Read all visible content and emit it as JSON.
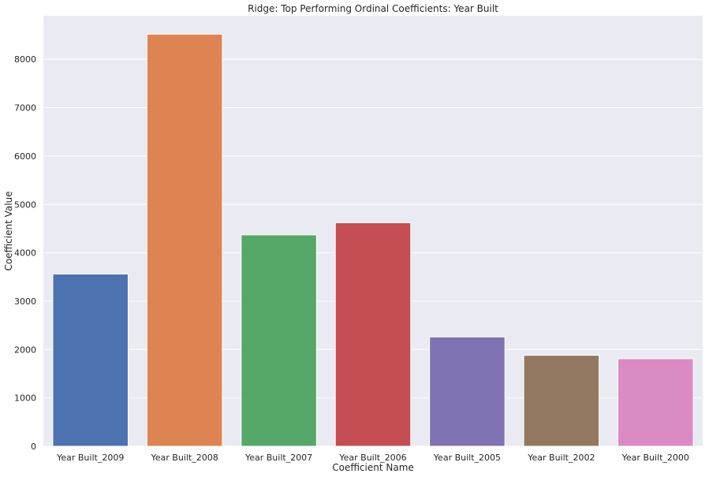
{
  "chart_data": {
    "type": "bar",
    "title": "Ridge: Top Performing Ordinal Coefficients: Year Built",
    "xlabel": "Coefficient Name",
    "ylabel": "Coefficient Value",
    "categories": [
      "Year Built_2009",
      "Year Built_2008",
      "Year Built_2007",
      "Year Built_2006",
      "Year Built_2005",
      "Year Built_2002",
      "Year Built_2000"
    ],
    "values": [
      3560,
      8520,
      4370,
      4620,
      2260,
      1880,
      1810
    ],
    "colors": [
      "#4c72b0",
      "#dd8452",
      "#55a868",
      "#c44e52",
      "#8172b3",
      "#937860",
      "#da8bc3"
    ],
    "ylim": [
      0,
      8900
    ],
    "yticks": [
      0,
      1000,
      2000,
      3000,
      4000,
      5000,
      6000,
      7000,
      8000
    ],
    "grid": true,
    "background": "#eaeaf2"
  }
}
